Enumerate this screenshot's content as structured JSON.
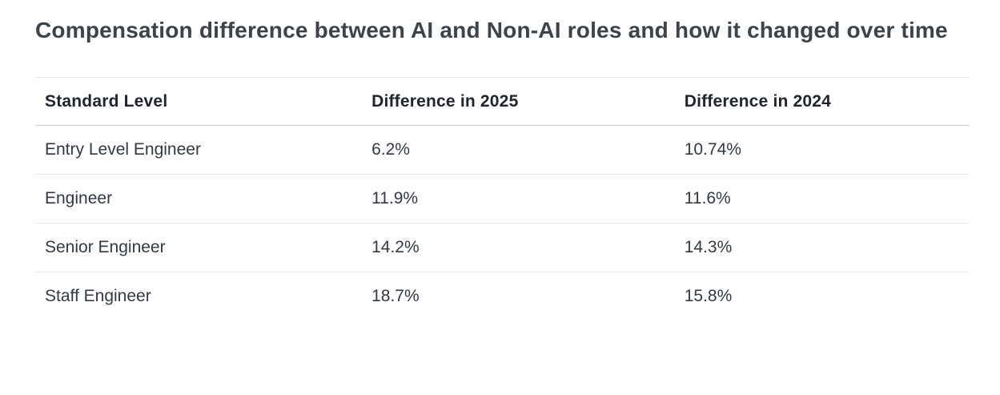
{
  "page": {
    "title": "Compensation difference between AI and Non-AI roles and how it changed over time"
  },
  "table": {
    "columns": [
      "Standard Level",
      "Difference in 2025",
      "Difference in 2024"
    ],
    "rows": [
      {
        "level": "Entry Level Engineer",
        "diff_2025": "6.2%",
        "diff_2024": "10.74%"
      },
      {
        "level": "Engineer",
        "diff_2025": "11.9%",
        "diff_2024": "11.6%"
      },
      {
        "level": "Senior Engineer",
        "diff_2025": "14.2%",
        "diff_2024": "14.3%"
      },
      {
        "level": "Staff Engineer",
        "diff_2025": "18.7%",
        "diff_2024": "15.8%"
      }
    ]
  },
  "colors": {
    "title_text": "#3d434b",
    "header_text": "#21262e",
    "cell_text": "#333a43",
    "table_top_border": "#e4e7eb",
    "header_border": "#c9cdd4",
    "row_border": "#e9ebef",
    "background": "#ffffff"
  },
  "chart_data": {
    "type": "table",
    "title": "Compensation difference between AI and Non-AI roles and how it changed over time",
    "categories": [
      "Entry Level Engineer",
      "Engineer",
      "Senior Engineer",
      "Staff Engineer"
    ],
    "series": [
      {
        "name": "Difference in 2025",
        "values": [
          6.2,
          11.9,
          14.2,
          18.7
        ]
      },
      {
        "name": "Difference in 2024",
        "values": [
          10.74,
          11.6,
          14.3,
          15.8
        ]
      }
    ],
    "unit": "%"
  }
}
